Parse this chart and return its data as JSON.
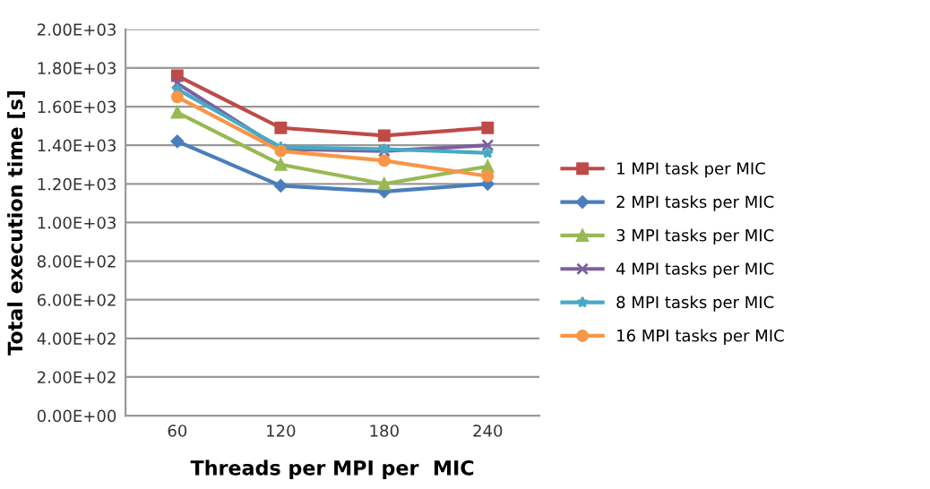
{
  "chart_data": {
    "type": "line",
    "xlabel": "Threads per MPI per  MIC",
    "ylabel": "Total execution time [s]",
    "categories": [
      "60",
      "120",
      "180",
      "240"
    ],
    "series": [
      {
        "name": "1 MPI task per MIC",
        "color": "#be4b48",
        "values": [
          1760,
          1490,
          1450,
          1490
        ],
        "marker": "square"
      },
      {
        "name": "2 MPI tasks per MIC",
        "color": "#4a7ebb",
        "values": [
          1420,
          1190,
          1160,
          1200
        ],
        "marker": "diamond"
      },
      {
        "name": "3 MPI tasks per MIC",
        "color": "#98b954",
        "values": [
          1570,
          1300,
          1200,
          1290
        ],
        "marker": "triangle"
      },
      {
        "name": "4 MPI tasks per MIC",
        "color": "#7d60a0",
        "values": [
          1720,
          1380,
          1370,
          1400
        ],
        "marker": "cross"
      },
      {
        "name": "8 MPI tasks per MIC",
        "color": "#46aac5",
        "values": [
          1690,
          1390,
          1380,
          1360
        ],
        "marker": "star"
      },
      {
        "name": "16 MPI tasks per MIC",
        "color": "#f79646",
        "values": [
          1650,
          1370,
          1320,
          1240
        ],
        "marker": "circle"
      }
    ],
    "ylim": [
      0,
      2000
    ],
    "yticks": [
      {
        "value": 0,
        "label": "0.00E+00"
      },
      {
        "value": 200,
        "label": "2.00E+02"
      },
      {
        "value": 400,
        "label": "4.00E+02"
      },
      {
        "value": 600,
        "label": "6.00E+02"
      },
      {
        "value": 800,
        "label": "8.00E+02"
      },
      {
        "value": 1000,
        "label": "1.00E+03"
      },
      {
        "value": 1200,
        "label": "1.20E+03"
      },
      {
        "value": 1400,
        "label": "1.40E+03"
      },
      {
        "value": 1600,
        "label": "1.60E+03"
      },
      {
        "value": 1800,
        "label": "1.80E+03"
      },
      {
        "value": 2000,
        "label": "2.00E+03"
      }
    ],
    "grid": "y",
    "legend": "right",
    "line_style": "solid"
  }
}
